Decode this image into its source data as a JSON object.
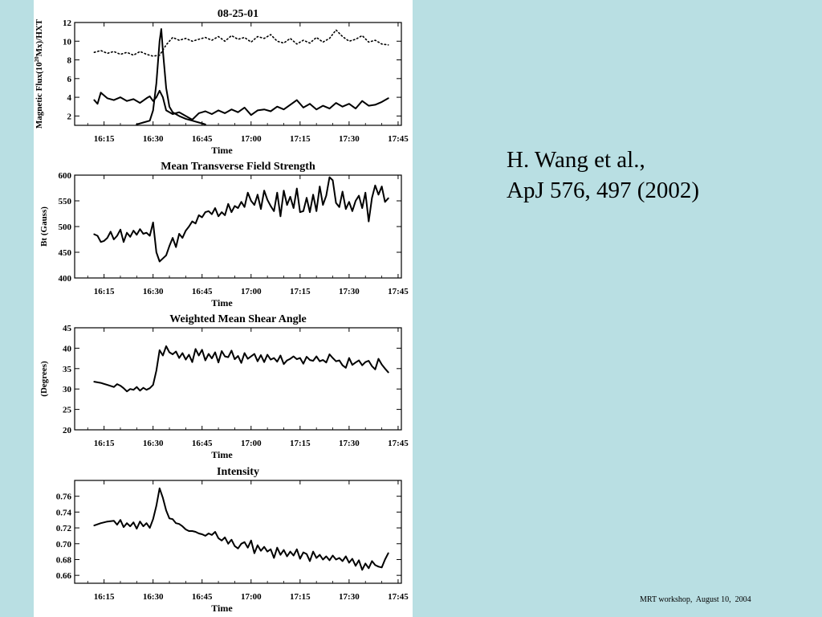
{
  "slide": {
    "citation": {
      "line1": "H. Wang et al.,",
      "line2": "ApJ 576, 497 (2002)"
    },
    "footer": "MRT workshop,  August 10,  2004",
    "colors": {
      "background": "#b9dfe3",
      "figure_background": "#ffffff",
      "ink": "#000000"
    }
  },
  "chart_data": [
    {
      "type": "line",
      "title": "08-25-01",
      "xlabel": "Time",
      "ylabel_parts": [
        "Magnetic Flux(10",
        "20",
        "Mx)/HXT"
      ],
      "x_ticks": [
        "16:15",
        "16:30",
        "16:45",
        "17:00",
        "17:15",
        "17:30",
        "17:45"
      ],
      "x_tick_minutes": [
        975,
        990,
        1005,
        1020,
        1035,
        1050,
        1065
      ],
      "xlim_minutes": [
        966,
        1066
      ],
      "ylim": [
        1,
        12
      ],
      "y_ticks": [
        2,
        4,
        6,
        8,
        10,
        12
      ],
      "series": [
        {
          "style": "dotted",
          "x_minutes": [
            972,
            974,
            976,
            978,
            980,
            982,
            984,
            986,
            988,
            990,
            992,
            994,
            996,
            998,
            1000,
            1002,
            1004,
            1006,
            1008,
            1010,
            1012,
            1014,
            1016,
            1018,
            1020,
            1022,
            1024,
            1026,
            1028,
            1030,
            1032,
            1034,
            1036,
            1038,
            1040,
            1042,
            1044,
            1046,
            1048,
            1050,
            1052,
            1054,
            1056,
            1058,
            1060,
            1062
          ],
          "values": [
            8.8,
            9.0,
            8.7,
            8.9,
            8.6,
            8.8,
            8.5,
            8.9,
            8.6,
            8.4,
            8.5,
            9.6,
            10.4,
            10.1,
            10.3,
            10.0,
            10.2,
            10.4,
            10.1,
            10.5,
            10.0,
            10.6,
            10.2,
            10.4,
            9.9,
            10.5,
            10.3,
            10.7,
            10.0,
            9.8,
            10.3,
            9.7,
            10.1,
            9.8,
            10.4,
            9.9,
            10.3,
            11.2,
            10.5,
            10.0,
            10.2,
            10.6,
            9.9,
            10.1,
            9.7,
            9.6
          ]
        },
        {
          "style": "solid",
          "x_minutes": [
            972,
            973,
            974,
            976,
            978,
            980,
            982,
            984,
            986,
            988,
            989,
            990,
            991,
            992,
            993,
            994,
            996,
            998,
            1000,
            1002,
            1004,
            1006,
            1008,
            1010,
            1012,
            1014,
            1016,
            1018,
            1020,
            1022,
            1024,
            1026,
            1028,
            1030,
            1032,
            1034,
            1036,
            1038,
            1040,
            1042,
            1044,
            1046,
            1048,
            1050,
            1052,
            1054,
            1056,
            1058,
            1060,
            1062
          ],
          "values": [
            3.7,
            3.3,
            4.5,
            3.9,
            3.7,
            4.0,
            3.6,
            3.8,
            3.4,
            3.9,
            4.1,
            3.6,
            4.0,
            4.7,
            4.0,
            2.6,
            2.2,
            2.4,
            2.0,
            1.6,
            2.3,
            2.5,
            2.2,
            2.6,
            2.3,
            2.7,
            2.4,
            2.9,
            2.1,
            2.6,
            2.7,
            2.5,
            3.0,
            2.7,
            3.2,
            3.7,
            2.9,
            3.3,
            2.7,
            3.1,
            2.8,
            3.4,
            3.0,
            3.3,
            2.8,
            3.6,
            3.1,
            3.2,
            3.5,
            3.9
          ]
        },
        {
          "style": "solid",
          "x_minutes": [
            985,
            987,
            989,
            990,
            991,
            992,
            992.5,
            993,
            994,
            995,
            996,
            998,
            1000,
            1002,
            1004,
            1006
          ],
          "values": [
            1.1,
            1.3,
            1.5,
            2.6,
            5.5,
            10.0,
            11.3,
            9.0,
            5.0,
            3.0,
            2.4,
            2.0,
            1.7,
            1.5,
            1.3,
            1.1
          ]
        }
      ]
    },
    {
      "type": "line",
      "title": "Mean Transverse Field Strength",
      "xlabel": "Time",
      "ylabel": "Bt (Gauss)",
      "x_ticks": [
        "16:15",
        "16:30",
        "16:45",
        "17:00",
        "17:15",
        "17:30",
        "17:45"
      ],
      "x_tick_minutes": [
        975,
        990,
        1005,
        1020,
        1035,
        1050,
        1065
      ],
      "xlim_minutes": [
        966,
        1066
      ],
      "ylim": [
        400,
        600
      ],
      "y_ticks": [
        400,
        450,
        500,
        550,
        600
      ],
      "series": [
        {
          "style": "solid",
          "x_minutes": [
            972,
            973,
            974,
            975,
            976,
            977,
            978,
            979,
            980,
            981,
            982,
            983,
            984,
            985,
            986,
            987,
            988,
            989,
            990,
            991,
            992,
            993,
            994,
            995,
            996,
            997,
            998,
            999,
            1000,
            1001,
            1002,
            1003,
            1004,
            1005,
            1006,
            1007,
            1008,
            1009,
            1010,
            1011,
            1012,
            1013,
            1014,
            1015,
            1016,
            1017,
            1018,
            1019,
            1020,
            1021,
            1022,
            1023,
            1024,
            1025,
            1026,
            1027,
            1028,
            1029,
            1030,
            1031,
            1032,
            1033,
            1034,
            1035,
            1036,
            1037,
            1038,
            1039,
            1040,
            1041,
            1042,
            1043,
            1044,
            1045,
            1046,
            1047,
            1048,
            1049,
            1050,
            1051,
            1052,
            1053,
            1054,
            1055,
            1056,
            1057,
            1058,
            1059,
            1060,
            1061,
            1062
          ],
          "values": [
            485,
            482,
            470,
            472,
            478,
            490,
            475,
            482,
            494,
            470,
            488,
            480,
            492,
            484,
            495,
            486,
            488,
            482,
            508,
            450,
            432,
            438,
            444,
            462,
            478,
            460,
            486,
            478,
            492,
            500,
            510,
            506,
            522,
            518,
            528,
            530,
            524,
            536,
            520,
            528,
            522,
            544,
            528,
            540,
            536,
            548,
            538,
            566,
            550,
            542,
            562,
            534,
            570,
            552,
            540,
            530,
            566,
            520,
            570,
            542,
            558,
            536,
            574,
            528,
            530,
            556,
            528,
            562,
            530,
            578,
            542,
            560,
            596,
            590,
            546,
            538,
            568,
            534,
            548,
            530,
            550,
            560,
            536,
            566,
            510,
            556,
            580,
            562,
            578,
            548,
            555
          ]
        }
      ]
    },
    {
      "type": "line",
      "title": "Weighted Mean Shear Angle",
      "xlabel": "Time",
      "ylabel": "(Degrees)",
      "x_ticks": [
        "16:15",
        "16:30",
        "16:45",
        "17:00",
        "17:15",
        "17:30",
        "17:45"
      ],
      "x_tick_minutes": [
        975,
        990,
        1005,
        1020,
        1035,
        1050,
        1065
      ],
      "xlim_minutes": [
        966,
        1066
      ],
      "ylim": [
        20,
        45
      ],
      "y_ticks": [
        20,
        25,
        30,
        35,
        40,
        45
      ],
      "series": [
        {
          "style": "solid",
          "x_minutes": [
            972,
            974,
            976,
            978,
            979,
            980,
            981,
            982,
            983,
            984,
            985,
            986,
            987,
            988,
            989,
            990,
            991,
            992,
            993,
            994,
            995,
            996,
            997,
            998,
            999,
            1000,
            1001,
            1002,
            1003,
            1004,
            1005,
            1006,
            1007,
            1008,
            1009,
            1010,
            1011,
            1012,
            1013,
            1014,
            1015,
            1016,
            1017,
            1018,
            1019,
            1020,
            1021,
            1022,
            1023,
            1024,
            1025,
            1026,
            1027,
            1028,
            1029,
            1030,
            1031,
            1032,
            1033,
            1034,
            1035,
            1036,
            1037,
            1038,
            1039,
            1040,
            1041,
            1042,
            1043,
            1044,
            1045,
            1046,
            1047,
            1048,
            1049,
            1050,
            1051,
            1052,
            1053,
            1054,
            1055,
            1056,
            1057,
            1058,
            1059,
            1060,
            1061,
            1062
          ],
          "values": [
            31.8,
            31.5,
            31.0,
            30.5,
            31.2,
            30.8,
            30.2,
            29.4,
            30.0,
            29.8,
            30.5,
            29.6,
            30.3,
            29.8,
            30.2,
            31.0,
            34.5,
            39.5,
            38.2,
            40.5,
            39.0,
            38.5,
            39.2,
            37.6,
            38.8,
            37.2,
            38.4,
            36.6,
            39.8,
            38.2,
            39.6,
            37.0,
            38.6,
            37.5,
            39.0,
            36.5,
            39.3,
            38.0,
            37.8,
            39.4,
            37.3,
            38.1,
            36.4,
            38.8,
            37.4,
            38.0,
            38.6,
            36.8,
            38.3,
            36.6,
            38.4,
            37.2,
            37.6,
            36.7,
            38.2,
            36.1,
            37.0,
            37.4,
            38.0,
            37.3,
            37.6,
            36.2,
            37.9,
            37.1,
            36.9,
            38.0,
            36.8,
            37.1,
            36.5,
            38.5,
            37.6,
            36.8,
            37.0,
            35.8,
            35.2,
            37.6,
            35.9,
            36.5,
            37.0,
            35.8,
            36.6,
            36.9,
            35.6,
            34.8,
            37.4,
            36.0,
            35.0,
            34.1
          ]
        }
      ]
    },
    {
      "type": "line",
      "title": "Intensity",
      "xlabel": "Time",
      "ylabel": "",
      "x_ticks": [
        "16:15",
        "16:30",
        "16:45",
        "17:00",
        "17:15",
        "17:30",
        "17:45"
      ],
      "x_tick_minutes": [
        975,
        990,
        1005,
        1020,
        1035,
        1050,
        1065
      ],
      "xlim_minutes": [
        966,
        1066
      ],
      "ylim": [
        0.65,
        0.78
      ],
      "y_ticks": [
        0.66,
        0.68,
        0.7,
        0.72,
        0.74,
        0.76
      ],
      "y_tick_labels": [
        "0.66",
        "0.68",
        "0.70",
        "0.72",
        "0.74",
        "0.76"
      ],
      "series": [
        {
          "style": "solid",
          "x_minutes": [
            972,
            974,
            976,
            978,
            979,
            980,
            981,
            982,
            983,
            984,
            985,
            986,
            987,
            988,
            989,
            990,
            991,
            992,
            993,
            994,
            995,
            996,
            997,
            998,
            999,
            1000,
            1001,
            1002,
            1003,
            1004,
            1005,
            1006,
            1007,
            1008,
            1009,
            1010,
            1011,
            1012,
            1013,
            1014,
            1015,
            1016,
            1017,
            1018,
            1019,
            1020,
            1021,
            1022,
            1023,
            1024,
            1025,
            1026,
            1027,
            1028,
            1029,
            1030,
            1031,
            1032,
            1033,
            1034,
            1035,
            1036,
            1037,
            1038,
            1039,
            1040,
            1041,
            1042,
            1043,
            1044,
            1045,
            1046,
            1047,
            1048,
            1049,
            1050,
            1051,
            1052,
            1053,
            1054,
            1055,
            1056,
            1057,
            1058,
            1059,
            1060,
            1061,
            1062
          ],
          "values": [
            0.723,
            0.726,
            0.728,
            0.729,
            0.724,
            0.73,
            0.721,
            0.726,
            0.722,
            0.727,
            0.719,
            0.728,
            0.722,
            0.726,
            0.72,
            0.731,
            0.748,
            0.77,
            0.758,
            0.742,
            0.732,
            0.731,
            0.726,
            0.725,
            0.722,
            0.718,
            0.716,
            0.716,
            0.715,
            0.713,
            0.712,
            0.71,
            0.713,
            0.711,
            0.715,
            0.707,
            0.704,
            0.708,
            0.7,
            0.705,
            0.697,
            0.694,
            0.7,
            0.702,
            0.695,
            0.704,
            0.688,
            0.698,
            0.691,
            0.696,
            0.69,
            0.693,
            0.682,
            0.695,
            0.686,
            0.692,
            0.684,
            0.69,
            0.685,
            0.693,
            0.681,
            0.689,
            0.687,
            0.678,
            0.69,
            0.682,
            0.686,
            0.68,
            0.684,
            0.679,
            0.685,
            0.68,
            0.682,
            0.678,
            0.684,
            0.676,
            0.681,
            0.672,
            0.679,
            0.667,
            0.675,
            0.669,
            0.678,
            0.673,
            0.671,
            0.67,
            0.68,
            0.688
          ]
        }
      ]
    }
  ]
}
